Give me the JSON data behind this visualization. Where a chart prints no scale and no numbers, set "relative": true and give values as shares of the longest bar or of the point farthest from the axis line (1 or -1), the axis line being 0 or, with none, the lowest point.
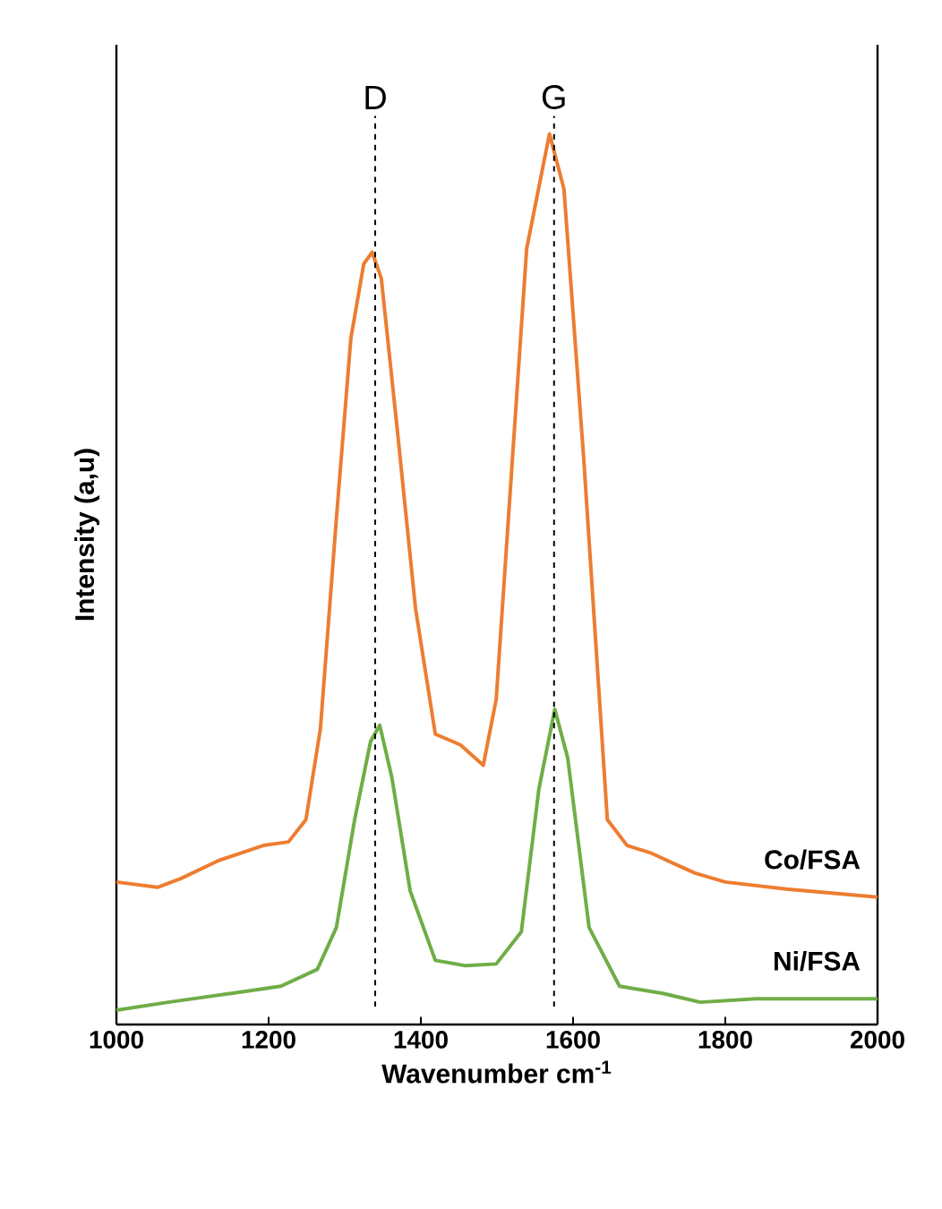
{
  "chart_data": {
    "type": "line",
    "xlabel": "Wavenumber cm$^{-1}$",
    "ylabel": "Intensity (a,u)",
    "relative": true,
    "xlim": [
      1000,
      2000
    ],
    "xticks": [
      1000,
      1200,
      1400,
      1600,
      1800,
      2000
    ],
    "grid": false,
    "marker": "none",
    "line_style": "solid",
    "series": [
      {
        "name": "Co/FSA",
        "color": "#ed7d31",
        "x": [
          1000,
          1054,
          1085,
          1134,
          1193,
          1226,
          1249,
          1268,
          1289,
          1308,
          1325,
          1336,
          1348,
          1369,
          1393,
          1419,
          1452,
          1482,
          1499,
          1515,
          1539,
          1569,
          1588,
          1614,
          1645,
          1671,
          1701,
          1760,
          1800,
          1880,
          2000
        ],
        "values": [
          0.16,
          0.154,
          0.164,
          0.184,
          0.201,
          0.205,
          0.23,
          0.332,
          0.568,
          0.77,
          0.854,
          0.867,
          0.838,
          0.668,
          0.467,
          0.326,
          0.314,
          0.291,
          0.365,
          0.568,
          0.871,
          1.0,
          0.938,
          0.635,
          0.23,
          0.201,
          0.193,
          0.17,
          0.16,
          0.152,
          0.143
        ]
      },
      {
        "name": "Ni/FSA",
        "color": "#70ad47",
        "x": [
          1000,
          1068,
          1151,
          1216,
          1264,
          1289,
          1313,
          1334,
          1346,
          1362,
          1386,
          1419,
          1459,
          1499,
          1532,
          1555,
          1576,
          1593,
          1621,
          1661,
          1718,
          1767,
          1840,
          1922,
          2000
        ],
        "values": [
          0.016,
          0.025,
          0.035,
          0.043,
          0.062,
          0.109,
          0.23,
          0.318,
          0.336,
          0.277,
          0.15,
          0.072,
          0.066,
          0.068,
          0.104,
          0.264,
          0.354,
          0.299,
          0.109,
          0.043,
          0.035,
          0.025,
          0.029,
          0.029,
          0.029
        ]
      }
    ],
    "ref_lines": [
      {
        "axis": "x",
        "value": 1340,
        "label": "D",
        "color": "#000000",
        "line_style": "dashed"
      },
      {
        "axis": "x",
        "value": 1575,
        "label": "G",
        "color": "#000000",
        "line_style": "dashed"
      }
    ]
  }
}
